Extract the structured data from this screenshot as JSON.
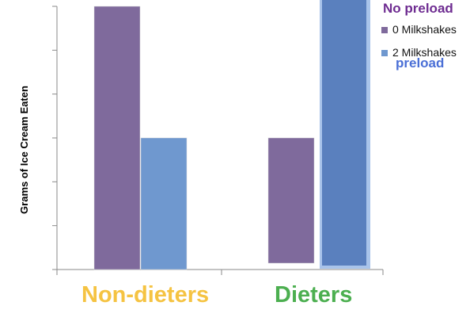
{
  "chart_data": {
    "type": "bar",
    "categories": [
      "Non-dieters",
      "Dieters"
    ],
    "series": [
      {
        "name": "0 Milkshakes",
        "values": [
          600,
          300
        ]
      },
      {
        "name": "2 Milkshakes",
        "values": [
          300,
          620
        ]
      }
    ],
    "ylabel": "Grams of Ice Cream Eaten",
    "xlabel": "",
    "ylim": [
      0,
      600
    ],
    "legend": {
      "title": "No preload",
      "subtitle": "preload",
      "placement": "top-right"
    },
    "grid": false,
    "colors": {
      "series0": "#7f6a9c",
      "series1": "#6f98cf",
      "highlight_bar": "#5a80be",
      "highlight_outline": "#a9c4ea",
      "category0": "#f5c342",
      "category1": "#4caf50",
      "legend_title": "#6e2c91",
      "legend_subtitle": "#4a6fd6"
    }
  }
}
